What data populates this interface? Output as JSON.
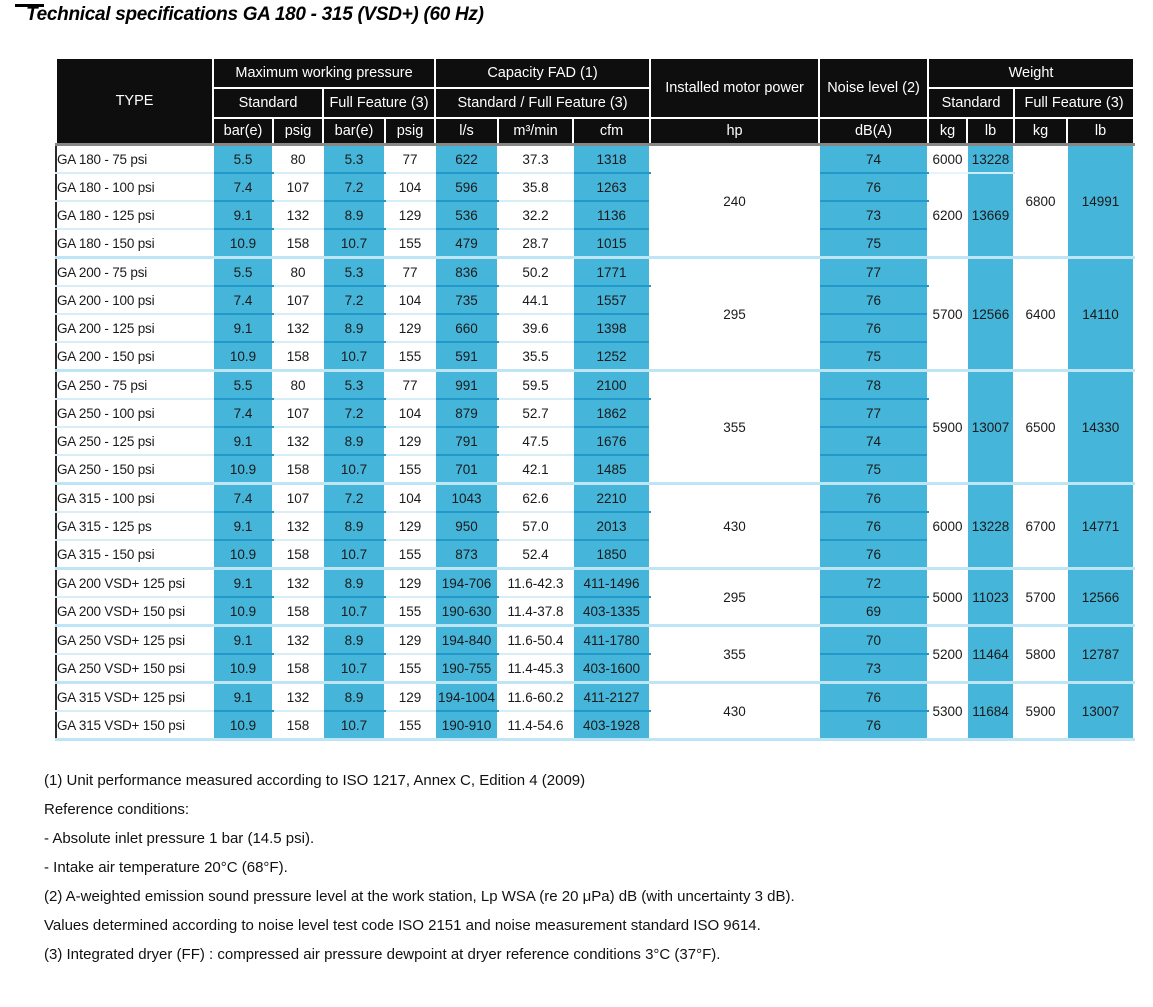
{
  "title": "Technical specifications GA 180 - 315 (VSD+) (60 Hz)",
  "colors": {
    "accent_blue": "#45b5da",
    "header_black": "#0e0e0e",
    "group_divider": "#bee5f4"
  },
  "table": {
    "header": {
      "type_label": "TYPE",
      "group_labels": [
        "Maximum working pressure",
        "Capacity FAD (1)",
        "Installed motor power",
        "Noise level (2)",
        "Weight"
      ],
      "sub_labels": [
        "Standard",
        "Full Feature (3)",
        "Standard / Full Feature (3)",
        "Standard",
        "Full Feature (3)"
      ],
      "units": [
        "bar(e)",
        "psig",
        "bar(e)",
        "psig",
        "l/s",
        "m³/min",
        "cfm",
        "hp",
        "dB(A)",
        "kg",
        "lb",
        "kg",
        "lb"
      ]
    },
    "groups": [
      {
        "hp": "240",
        "rows": [
          {
            "type": "GA 180 - 75 psi",
            "pressure": [
              "5.5",
              "80",
              "5.3",
              "77"
            ],
            "capacity": [
              "622",
              "37.3",
              "1318"
            ],
            "noise": "74"
          },
          {
            "type": "GA 180 - 100 psi",
            "pressure": [
              "7.4",
              "107",
              "7.2",
              "104"
            ],
            "capacity": [
              "596",
              "35.8",
              "1263"
            ],
            "noise": "76"
          },
          {
            "type": "GA 180 - 125 psi",
            "pressure": [
              "9.1",
              "132",
              "8.9",
              "129"
            ],
            "capacity": [
              "536",
              "32.2",
              "1136"
            ],
            "noise": "73"
          },
          {
            "type": "GA 180 - 150 psi",
            "pressure": [
              "10.9",
              "158",
              "10.7",
              "155"
            ],
            "capacity": [
              "479",
              "28.7",
              "1015"
            ],
            "noise": "75"
          }
        ],
        "std_weight": [
          {
            "kg": "6000",
            "lb": "13228",
            "span": 1
          },
          {
            "kg": "6200",
            "lb": "13669",
            "span": 3
          }
        ],
        "ff_weight": [
          {
            "kg": "6800",
            "lb": "14991",
            "span": 4
          }
        ]
      },
      {
        "hp": "295",
        "rows": [
          {
            "type": "GA 200 - 75 psi",
            "pressure": [
              "5.5",
              "80",
              "5.3",
              "77"
            ],
            "capacity": [
              "836",
              "50.2",
              "1771"
            ],
            "noise": "77"
          },
          {
            "type": "GA 200 - 100 psi",
            "pressure": [
              "7.4",
              "107",
              "7.2",
              "104"
            ],
            "capacity": [
              "735",
              "44.1",
              "1557"
            ],
            "noise": "76"
          },
          {
            "type": "GA 200 - 125 psi",
            "pressure": [
              "9.1",
              "132",
              "8.9",
              "129"
            ],
            "capacity": [
              "660",
              "39.6",
              "1398"
            ],
            "noise": "76"
          },
          {
            "type": "GA 200 - 150 psi",
            "pressure": [
              "10.9",
              "158",
              "10.7",
              "155"
            ],
            "capacity": [
              "591",
              "35.5",
              "1252"
            ],
            "noise": "75"
          }
        ],
        "std_weight": [
          {
            "kg": "5700",
            "lb": "12566",
            "span": 4
          }
        ],
        "ff_weight": [
          {
            "kg": "6400",
            "lb": "14110",
            "span": 4
          }
        ]
      },
      {
        "hp": "355",
        "rows": [
          {
            "type": "GA 250 - 75 psi",
            "pressure": [
              "5.5",
              "80",
              "5.3",
              "77"
            ],
            "capacity": [
              "991",
              "59.5",
              "2100"
            ],
            "noise": "78"
          },
          {
            "type": "GA 250 - 100 psi",
            "pressure": [
              "7.4",
              "107",
              "7.2",
              "104"
            ],
            "capacity": [
              "879",
              "52.7",
              "1862"
            ],
            "noise": "77"
          },
          {
            "type": "GA 250 - 125 psi",
            "pressure": [
              "9.1",
              "132",
              "8.9",
              "129"
            ],
            "capacity": [
              "791",
              "47.5",
              "1676"
            ],
            "noise": "74"
          },
          {
            "type": "GA 250 - 150 psi",
            "pressure": [
              "10.9",
              "158",
              "10.7",
              "155"
            ],
            "capacity": [
              "701",
              "42.1",
              "1485"
            ],
            "noise": "75"
          }
        ],
        "std_weight": [
          {
            "kg": "5900",
            "lb": "13007",
            "span": 4
          }
        ],
        "ff_weight": [
          {
            "kg": "6500",
            "lb": "14330",
            "span": 4
          }
        ]
      },
      {
        "hp": "430",
        "rows": [
          {
            "type": "GA 315 - 100 psi",
            "pressure": [
              "7.4",
              "107",
              "7.2",
              "104"
            ],
            "capacity": [
              "1043",
              "62.6",
              "2210"
            ],
            "noise": "76"
          },
          {
            "type": "GA 315 - 125 ps",
            "pressure": [
              "9.1",
              "132",
              "8.9",
              "129"
            ],
            "capacity": [
              "950",
              "57.0",
              "2013"
            ],
            "noise": "76"
          },
          {
            "type": "GA 315 - 150 psi",
            "pressure": [
              "10.9",
              "158",
              "10.7",
              "155"
            ],
            "capacity": [
              "873",
              "52.4",
              "1850"
            ],
            "noise": "76"
          }
        ],
        "std_weight": [
          {
            "kg": "6000",
            "lb": "13228",
            "span": 3
          }
        ],
        "ff_weight": [
          {
            "kg": "6700",
            "lb": "14771",
            "span": 3
          }
        ]
      },
      {
        "hp": "295",
        "rows": [
          {
            "type": "GA 200 VSD+ 125 psi",
            "pressure": [
              "9.1",
              "132",
              "8.9",
              "129"
            ],
            "capacity": [
              "194-706",
              "11.6-42.3",
              "411-1496"
            ],
            "noise": "72"
          },
          {
            "type": "GA 200 VSD+ 150 psi",
            "pressure": [
              "10.9",
              "158",
              "10.7",
              "155"
            ],
            "capacity": [
              "190-630",
              "11.4-37.8",
              "403-1335"
            ],
            "noise": "69"
          }
        ],
        "std_weight": [
          {
            "kg": "5000",
            "lb": "11023",
            "span": 2
          }
        ],
        "ff_weight": [
          {
            "kg": "5700",
            "lb": "12566",
            "span": 2
          }
        ]
      },
      {
        "hp": "355",
        "rows": [
          {
            "type": "GA 250 VSD+ 125 psi",
            "pressure": [
              "9.1",
              "132",
              "8.9",
              "129"
            ],
            "capacity": [
              "194-840",
              "11.6-50.4",
              "411-1780"
            ],
            "noise": "70"
          },
          {
            "type": "GA 250 VSD+ 150 psi",
            "pressure": [
              "10.9",
              "158",
              "10.7",
              "155"
            ],
            "capacity": [
              "190-755",
              "11.4-45.3",
              "403-1600"
            ],
            "noise": "73"
          }
        ],
        "std_weight": [
          {
            "kg": "5200",
            "lb": "11464",
            "span": 2
          }
        ],
        "ff_weight": [
          {
            "kg": "5800",
            "lb": "12787",
            "span": 2
          }
        ]
      },
      {
        "hp": "430",
        "rows": [
          {
            "type": "GA 315 VSD+ 125 psi",
            "pressure": [
              "9.1",
              "132",
              "8.9",
              "129"
            ],
            "capacity": [
              "194-1004",
              "11.6-60.2",
              "411-2127"
            ],
            "noise": "76"
          },
          {
            "type": "GA 315 VSD+ 150 psi",
            "pressure": [
              "10.9",
              "158",
              "10.7",
              "155"
            ],
            "capacity": [
              "190-910",
              "11.4-54.6",
              "403-1928"
            ],
            "noise": "76"
          }
        ],
        "std_weight": [
          {
            "kg": "5300",
            "lb": "11684",
            "span": 2
          }
        ],
        "ff_weight": [
          {
            "kg": "5900",
            "lb": "13007",
            "span": 2
          }
        ]
      }
    ]
  },
  "footnotes": [
    "(1) Unit performance measured according to ISO 1217, Annex C, Edition 4 (2009)",
    "Reference conditions:",
    "- Absolute inlet pressure 1 bar (14.5 psi).",
    "- Intake air temperature 20°C (68°F).",
    "(2) A-weighted emission sound pressure level at the work station, Lp WSA (re 20 μPa) dB (with uncertainty 3 dB).",
    "Values determined according to noise level test code ISO 2151 and noise measurement standard ISO 9614.",
    "(3) Integrated dryer (FF) : compressed air pressure dewpoint at dryer reference conditions 3°C (37°F)."
  ]
}
